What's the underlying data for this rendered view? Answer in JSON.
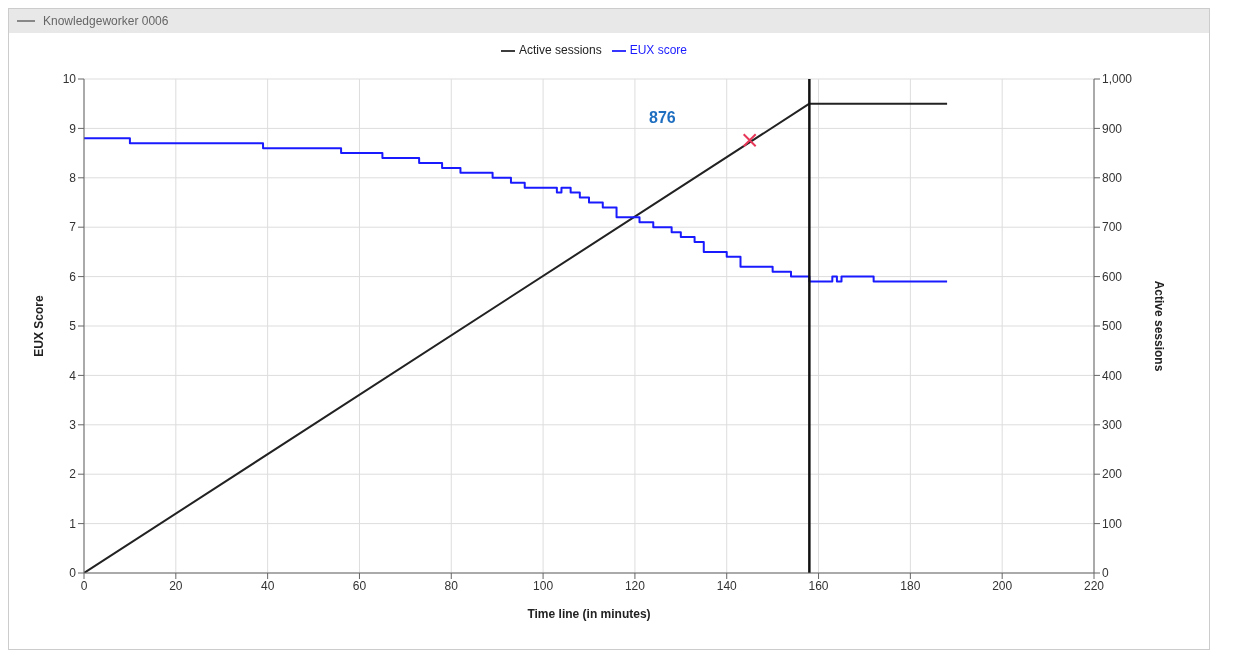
{
  "chart_data": {
    "type": "line",
    "title": "Knowledgeworker 0006",
    "xlabel": "Time line (in minutes)",
    "ylabel": "EUX Score",
    "y2label": "Active sessions",
    "xlim": [
      0,
      220
    ],
    "xticks": [
      0,
      20,
      40,
      60,
      80,
      100,
      120,
      140,
      160,
      180,
      200,
      220
    ],
    "ylim": [
      0,
      10
    ],
    "yticks": [
      0,
      1,
      2,
      3,
      4,
      5,
      6,
      7,
      8,
      9,
      10
    ],
    "y2lim": [
      0,
      1000
    ],
    "y2ticks": [
      0,
      100,
      200,
      300,
      400,
      500,
      600,
      700,
      800,
      900,
      {
        "value": 1000,
        "label": "1,000"
      }
    ],
    "grid": true,
    "legend": "top",
    "line_style": "solid",
    "series": [
      {
        "name": "Active sessions",
        "type": "line",
        "axis": "y2",
        "color": "#222222",
        "marker": "none",
        "x": [
          0,
          158,
          188
        ],
        "values": [
          0,
          950,
          950
        ]
      },
      {
        "type": "scatter",
        "axis": "y2",
        "color": "#e8385a",
        "marker": "cross",
        "x": [
          145
        ],
        "values": [
          876
        ]
      },
      {
        "name": "EUX score",
        "type": "step",
        "color": "#1a1aff",
        "marker": "none",
        "x": [
          0,
          10,
          39,
          56,
          65,
          73,
          78,
          82,
          89,
          93,
          96,
          103,
          104,
          106,
          108,
          110,
          113,
          116,
          121,
          124,
          128,
          130,
          133,
          135,
          140,
          143,
          150,
          154,
          158,
          163,
          164,
          165,
          172,
          188
        ],
        "values": [
          8.8,
          8.7,
          8.6,
          8.5,
          8.4,
          8.3,
          8.2,
          8.1,
          8.0,
          7.9,
          7.8,
          7.7,
          7.8,
          7.7,
          7.6,
          7.5,
          7.4,
          7.2,
          7.1,
          7.0,
          6.9,
          6.8,
          6.7,
          6.5,
          6.4,
          6.2,
          6.1,
          6.0,
          5.9,
          6.0,
          5.9,
          6.0,
          5.9,
          5.9
        ]
      }
    ],
    "ref_lines": [
      {
        "axis": "x",
        "value": 158,
        "color": "#111111"
      }
    ],
    "annotations": [
      "876"
    ]
  }
}
